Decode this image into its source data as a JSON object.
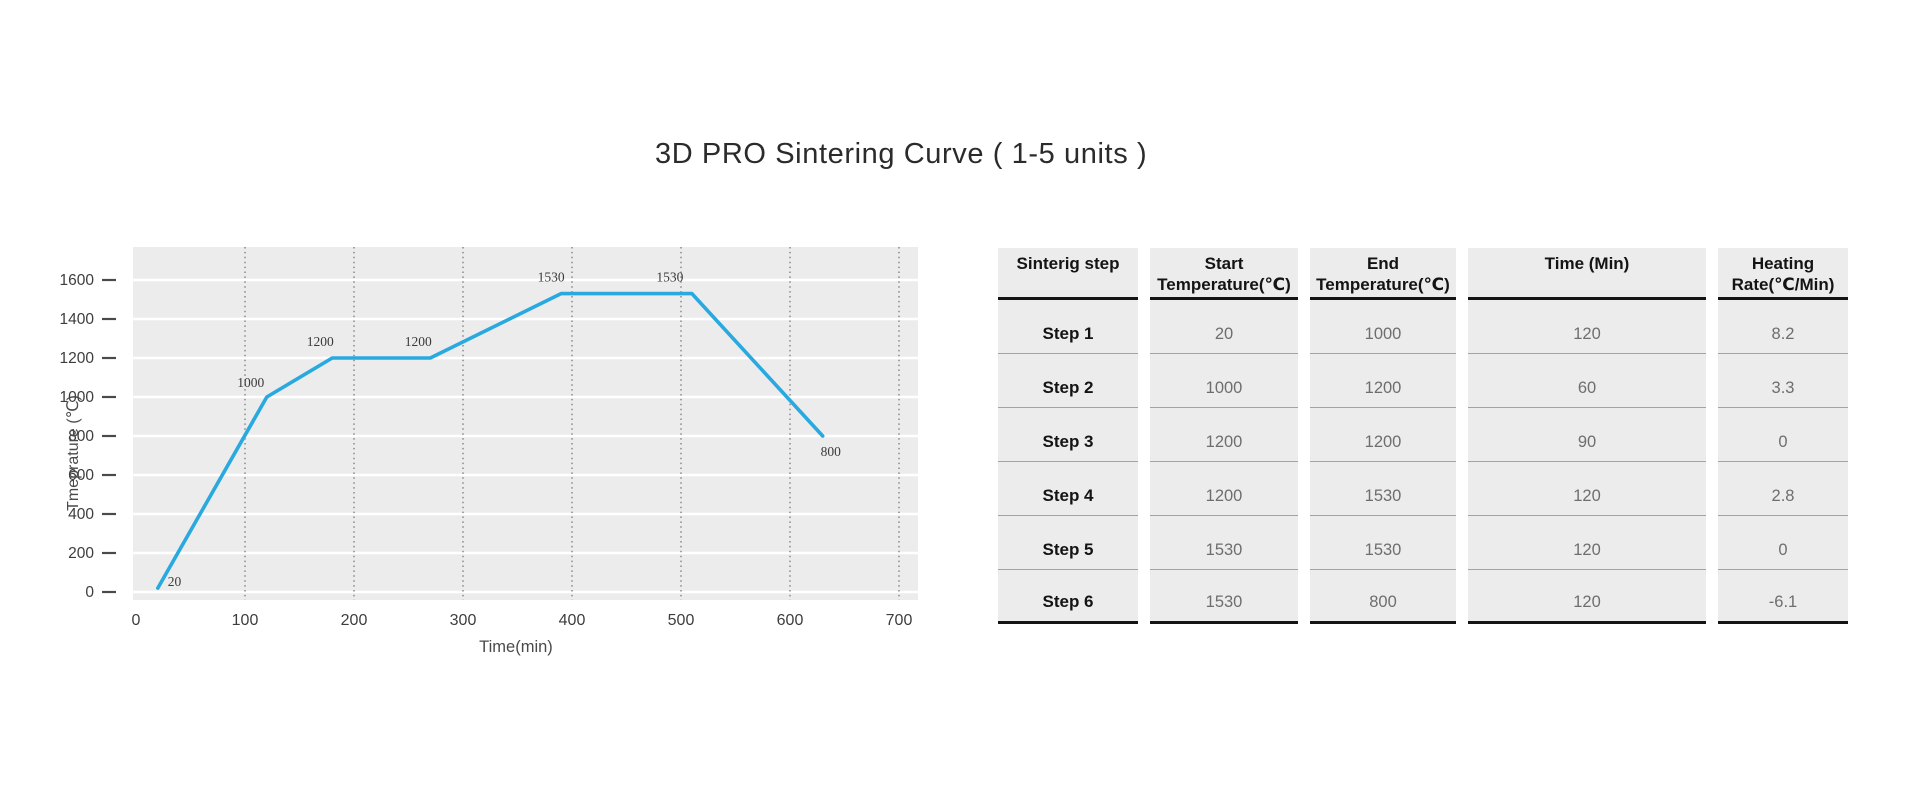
{
  "title": "3D PRO Sintering Curve ( 1-5 units )",
  "chart_data": {
    "type": "line",
    "title": "",
    "xlabel": "Time(min)",
    "ylabel": "Tmeprature (℃)",
    "x": [
      20,
      120,
      180,
      270,
      390,
      510,
      630
    ],
    "y": [
      20,
      1000,
      1200,
      1200,
      1530,
      1530,
      800
    ],
    "point_labels": [
      "20",
      "1000",
      "1200",
      "1200",
      "1530",
      "1530",
      "800"
    ],
    "x_ticks": [
      0,
      100,
      200,
      300,
      400,
      500,
      600,
      700
    ],
    "y_ticks": [
      0,
      200,
      400,
      600,
      800,
      1000,
      1200,
      1400,
      1600
    ],
    "xlim": [
      0,
      717
    ],
    "ylim": [
      -40,
      1770
    ],
    "legend": "none",
    "grid": {
      "horizontal": "solid white every 200",
      "vertical": "dotted gray every 100"
    },
    "colors": {
      "line": "#29a9e0",
      "plot_background": "#ececec",
      "h_gridline": "#ffffff",
      "v_gridline": "#8f8f8f",
      "tick_text": "#3d3d3d",
      "axis_title_text": "#4a4a4a",
      "point_label_text": "#3a3a3a"
    }
  },
  "table": {
    "headers": [
      [
        "Sinterig step"
      ],
      [
        "Start",
        "Temperature(℃)"
      ],
      [
        "End",
        "Temperature(℃)"
      ],
      [
        "Time (Min)"
      ],
      [
        "Heating",
        "Rate(℃/Min)"
      ]
    ],
    "rows": [
      {
        "step": "Step 1",
        "start": "20",
        "end": "1000",
        "time": "120",
        "rate": "8.2"
      },
      {
        "step": "Step 2",
        "start": "1000",
        "end": "1200",
        "time": "60",
        "rate": "3.3"
      },
      {
        "step": "Step 3",
        "start": "1200",
        "end": "1200",
        "time": "90",
        "rate": "0"
      },
      {
        "step": "Step 4",
        "start": "1200",
        "end": "1530",
        "time": "120",
        "rate": "2.8"
      },
      {
        "step": "Step 5",
        "start": "1530",
        "end": "1530",
        "time": "120",
        "rate": "0"
      },
      {
        "step": "Step 6",
        "start": "1530",
        "end": "800",
        "time": "120",
        "rate": "-6.1"
      }
    ]
  }
}
